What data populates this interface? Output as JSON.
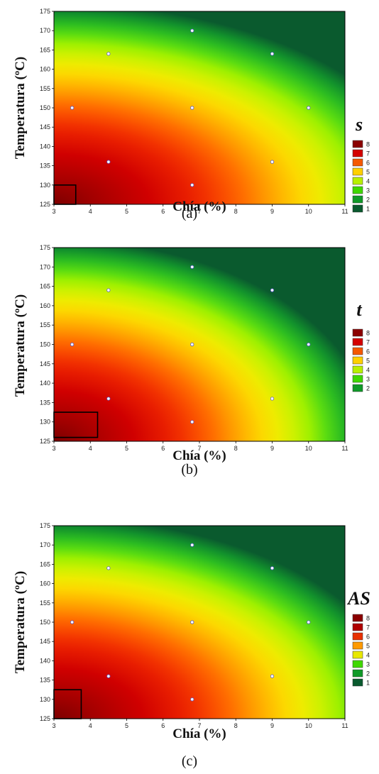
{
  "chart_data": [
    {
      "type": "contour",
      "caption": "(a)",
      "symbol": "s",
      "xlabel": "Chía (%)",
      "ylabel": "Temperatura (ºC)",
      "xlim": [
        3,
        11
      ],
      "ylim": [
        125,
        175
      ],
      "xticks": [
        3,
        4,
        5,
        6,
        7,
        8,
        9,
        10,
        11
      ],
      "yticks": [
        125,
        130,
        135,
        140,
        145,
        150,
        155,
        160,
        165,
        170,
        175
      ],
      "legend_levels": [
        "8",
        "7",
        "6",
        "5",
        "4",
        "3",
        "2",
        "1"
      ],
      "legend_colors": [
        "#8b0000",
        "#d40000",
        "#f55800",
        "#ffd000",
        "#b8f000",
        "#40d800",
        "#109a28",
        "#0a5a2e"
      ],
      "optimum_box": {
        "x": [
          3,
          3.6
        ],
        "y": [
          125,
          130
        ]
      },
      "design_points": [
        {
          "x": 3.5,
          "y": 150
        },
        {
          "x": 4.5,
          "y": 136
        },
        {
          "x": 4.5,
          "y": 164
        },
        {
          "x": 6.8,
          "y": 130
        },
        {
          "x": 6.8,
          "y": 150
        },
        {
          "x": 6.8,
          "y": 170
        },
        {
          "x": 9,
          "y": 136
        },
        {
          "x": 9,
          "y": 164
        },
        {
          "x": 10,
          "y": 150
        }
      ]
    },
    {
      "type": "contour",
      "caption": "(b)",
      "symbol": "t",
      "xlabel": "Chía (%)",
      "ylabel": "Temperatura (ºC)",
      "xlim": [
        3,
        11
      ],
      "ylim": [
        125,
        175
      ],
      "xticks": [
        3,
        4,
        5,
        6,
        7,
        8,
        9,
        10,
        11
      ],
      "yticks": [
        125,
        130,
        135,
        140,
        145,
        150,
        155,
        160,
        165,
        170,
        175
      ],
      "legend_levels": [
        "8",
        "7",
        "6",
        "5",
        "4",
        "3",
        "2"
      ],
      "legend_colors": [
        "#8b0000",
        "#d40000",
        "#f55800",
        "#ffd000",
        "#b8f000",
        "#40d800",
        "#109a28"
      ],
      "optimum_box": {
        "x": [
          3,
          4.2
        ],
        "y": [
          126,
          132.5
        ]
      },
      "design_points": [
        {
          "x": 3.5,
          "y": 150
        },
        {
          "x": 4.5,
          "y": 136
        },
        {
          "x": 4.5,
          "y": 164
        },
        {
          "x": 6.8,
          "y": 130
        },
        {
          "x": 6.8,
          "y": 150
        },
        {
          "x": 6.8,
          "y": 170
        },
        {
          "x": 9,
          "y": 136
        },
        {
          "x": 9,
          "y": 164
        },
        {
          "x": 10,
          "y": 150
        }
      ]
    },
    {
      "type": "contour",
      "caption": "(c)",
      "symbol": "AS",
      "xlabel": "Chía (%)",
      "ylabel": "Temperatura (ºC)",
      "xlim": [
        3,
        11
      ],
      "ylim": [
        125,
        175
      ],
      "xticks": [
        3,
        4,
        5,
        6,
        7,
        8,
        9,
        10,
        11
      ],
      "yticks": [
        125,
        130,
        135,
        140,
        145,
        150,
        155,
        160,
        165,
        170,
        175
      ],
      "legend_levels": [
        "8",
        "7",
        "6",
        "5",
        "4",
        "3",
        "2",
        "1"
      ],
      "legend_colors": [
        "#8b0000",
        "#b00000",
        "#e83000",
        "#ff9a00",
        "#e8e800",
        "#40d800",
        "#109a28",
        "#0a5a2e"
      ],
      "optimum_box": {
        "x": [
          3,
          3.75
        ],
        "y": [
          125,
          132.5
        ]
      },
      "design_points": [
        {
          "x": 3.5,
          "y": 150
        },
        {
          "x": 4.5,
          "y": 136
        },
        {
          "x": 4.5,
          "y": 164
        },
        {
          "x": 6.8,
          "y": 130
        },
        {
          "x": 6.8,
          "y": 150
        },
        {
          "x": 6.8,
          "y": 170
        },
        {
          "x": 9,
          "y": 136
        },
        {
          "x": 9,
          "y": 164
        },
        {
          "x": 10,
          "y": 150
        }
      ]
    }
  ]
}
